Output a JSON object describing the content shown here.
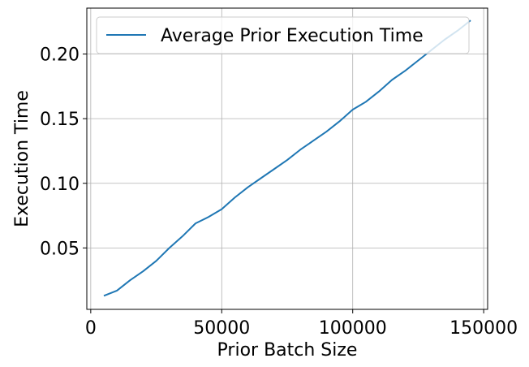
{
  "chart_data": {
    "type": "line",
    "xlabel": "Prior Batch Size",
    "ylabel": "Execution Time",
    "xlim": [
      -1500,
      151500
    ],
    "ylim": [
      0.0025,
      0.2355
    ],
    "xticks": [
      0,
      50000,
      100000,
      150000
    ],
    "xtick_labels": [
      "0",
      "50000",
      "100000",
      "150000"
    ],
    "yticks": [
      0.05,
      0.1,
      0.15,
      0.2
    ],
    "ytick_labels": [
      "0.05",
      "0.10",
      "0.15",
      "0.20"
    ],
    "grid": true,
    "legend_position": "top-left",
    "series": [
      {
        "name": "Average Prior Execution Time",
        "color": "#1f77b4",
        "x": [
          5000,
          10000,
          15000,
          20000,
          25000,
          30000,
          35000,
          40000,
          45000,
          50000,
          55000,
          60000,
          65000,
          70000,
          75000,
          80000,
          85000,
          90000,
          95000,
          100000,
          105000,
          110000,
          115000,
          120000,
          125000,
          130000,
          135000,
          140000,
          145000
        ],
        "y": [
          0.013,
          0.017,
          0.025,
          0.032,
          0.04,
          0.05,
          0.059,
          0.069,
          0.074,
          0.08,
          0.089,
          0.097,
          0.104,
          0.111,
          0.118,
          0.126,
          0.133,
          0.14,
          0.148,
          0.157,
          0.163,
          0.171,
          0.18,
          0.187,
          0.195,
          0.203,
          0.211,
          0.218,
          0.226
        ]
      }
    ]
  }
}
